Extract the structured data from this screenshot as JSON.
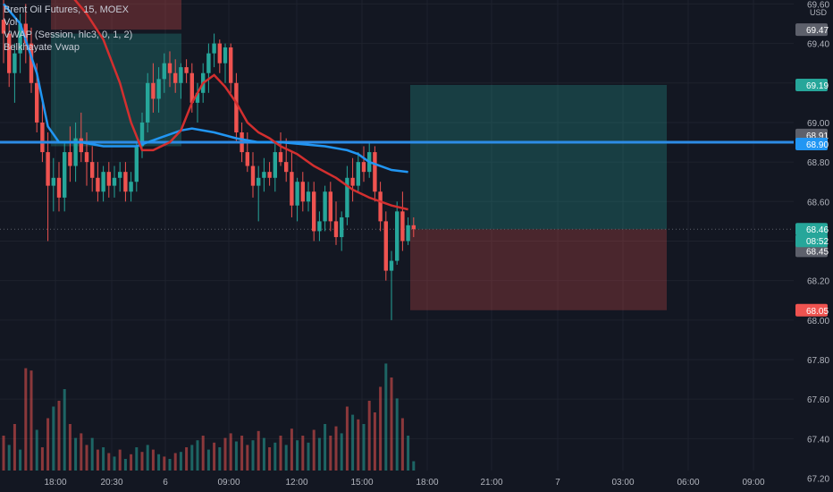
{
  "legend": {
    "symbol": "Brent Oil Futures, 15, MOEX",
    "vol": "Vol",
    "vwap": "VWAP (Session, hlc3, 0, 1, 2)",
    "belkhayate": "Belkhayate Vwap"
  },
  "chart_data": {
    "type": "candlestick",
    "title": "Brent Oil Futures, 15, MOEX",
    "currency": "USD",
    "ylim": [
      67.13,
      69.62
    ],
    "y_ticks": [
      "69.60",
      "69.40",
      "69.00",
      "68.80",
      "68.60",
      "68.20",
      "68.00",
      "67.80",
      "67.60",
      "67.40",
      "67.20"
    ],
    "x_ticks": [
      "18:00",
      "20:30",
      "6",
      "09:00",
      "12:00",
      "15:00",
      "18:00",
      "21:00",
      "7",
      "03:00",
      "06:00",
      "09:00"
    ],
    "candles": [
      {
        "o": 69.52,
        "h": 69.62,
        "l": 69.3,
        "c": 69.45
      },
      {
        "o": 69.45,
        "h": 69.5,
        "l": 69.18,
        "c": 69.25
      },
      {
        "o": 69.25,
        "h": 69.4,
        "l": 69.1,
        "c": 69.35
      },
      {
        "o": 69.35,
        "h": 69.55,
        "l": 69.25,
        "c": 69.5
      },
      {
        "o": 69.5,
        "h": 69.6,
        "l": 69.3,
        "c": 69.4
      },
      {
        "o": 69.4,
        "h": 69.48,
        "l": 69.15,
        "c": 69.2
      },
      {
        "o": 69.2,
        "h": 69.3,
        "l": 68.95,
        "c": 69.0
      },
      {
        "o": 69.0,
        "h": 69.1,
        "l": 68.8,
        "c": 68.85
      },
      {
        "o": 68.85,
        "h": 68.95,
        "l": 68.4,
        "c": 68.68
      },
      {
        "o": 68.68,
        "h": 68.82,
        "l": 68.55,
        "c": 68.72
      },
      {
        "o": 68.72,
        "h": 68.8,
        "l": 68.55,
        "c": 68.62
      },
      {
        "o": 68.62,
        "h": 68.9,
        "l": 68.55,
        "c": 68.85
      },
      {
        "o": 68.85,
        "h": 68.98,
        "l": 68.7,
        "c": 68.78
      },
      {
        "o": 68.78,
        "h": 69.0,
        "l": 68.7,
        "c": 68.92
      },
      {
        "o": 68.92,
        "h": 69.05,
        "l": 68.8,
        "c": 68.85
      },
      {
        "o": 68.85,
        "h": 68.95,
        "l": 68.68,
        "c": 68.8
      },
      {
        "o": 68.8,
        "h": 68.88,
        "l": 68.65,
        "c": 68.72
      },
      {
        "o": 68.72,
        "h": 68.8,
        "l": 68.6,
        "c": 68.65
      },
      {
        "o": 68.65,
        "h": 68.78,
        "l": 68.6,
        "c": 68.75
      },
      {
        "o": 68.75,
        "h": 68.8,
        "l": 68.62,
        "c": 68.68
      },
      {
        "o": 68.68,
        "h": 68.78,
        "l": 68.62,
        "c": 68.72
      },
      {
        "o": 68.72,
        "h": 68.8,
        "l": 68.65,
        "c": 68.75
      },
      {
        "o": 68.75,
        "h": 68.8,
        "l": 68.6,
        "c": 68.65
      },
      {
        "o": 68.65,
        "h": 68.75,
        "l": 68.6,
        "c": 68.7
      },
      {
        "o": 68.7,
        "h": 68.9,
        "l": 68.65,
        "c": 68.88
      },
      {
        "o": 68.88,
        "h": 69.05,
        "l": 68.82,
        "c": 69.0
      },
      {
        "o": 69.0,
        "h": 69.25,
        "l": 68.95,
        "c": 69.2
      },
      {
        "o": 69.2,
        "h": 69.3,
        "l": 69.05,
        "c": 69.12
      },
      {
        "o": 69.12,
        "h": 69.28,
        "l": 69.05,
        "c": 69.22
      },
      {
        "o": 69.22,
        "h": 69.35,
        "l": 69.15,
        "c": 69.3
      },
      {
        "o": 69.3,
        "h": 69.36,
        "l": 69.18,
        "c": 69.25
      },
      {
        "o": 69.25,
        "h": 69.32,
        "l": 69.15,
        "c": 69.2
      },
      {
        "o": 69.2,
        "h": 69.3,
        "l": 69.12,
        "c": 69.28
      },
      {
        "o": 69.28,
        "h": 69.32,
        "l": 69.2,
        "c": 69.25
      },
      {
        "o": 69.25,
        "h": 69.3,
        "l": 69.05,
        "c": 69.1
      },
      {
        "o": 69.1,
        "h": 69.2,
        "l": 69.0,
        "c": 69.15
      },
      {
        "o": 69.15,
        "h": 69.3,
        "l": 69.1,
        "c": 69.25
      },
      {
        "o": 69.25,
        "h": 69.4,
        "l": 69.15,
        "c": 69.35
      },
      {
        "o": 69.35,
        "h": 69.45,
        "l": 69.28,
        "c": 69.4
      },
      {
        "o": 69.4,
        "h": 69.42,
        "l": 69.25,
        "c": 69.3
      },
      {
        "o": 69.3,
        "h": 69.4,
        "l": 69.2,
        "c": 69.38
      },
      {
        "o": 69.38,
        "h": 69.4,
        "l": 69.15,
        "c": 69.2
      },
      {
        "o": 69.2,
        "h": 69.25,
        "l": 68.9,
        "c": 68.95
      },
      {
        "o": 68.95,
        "h": 69.0,
        "l": 68.8,
        "c": 68.85
      },
      {
        "o": 68.85,
        "h": 68.95,
        "l": 68.75,
        "c": 68.78
      },
      {
        "o": 68.78,
        "h": 68.85,
        "l": 68.62,
        "c": 68.68
      },
      {
        "o": 68.68,
        "h": 68.78,
        "l": 68.5,
        "c": 68.72
      },
      {
        "o": 68.72,
        "h": 68.82,
        "l": 68.65,
        "c": 68.75
      },
      {
        "o": 68.75,
        "h": 68.8,
        "l": 68.68,
        "c": 68.72
      },
      {
        "o": 68.72,
        "h": 68.9,
        "l": 68.65,
        "c": 68.85
      },
      {
        "o": 68.85,
        "h": 68.95,
        "l": 68.78,
        "c": 68.8
      },
      {
        "o": 68.8,
        "h": 68.92,
        "l": 68.7,
        "c": 68.75
      },
      {
        "o": 68.75,
        "h": 68.85,
        "l": 68.52,
        "c": 68.58
      },
      {
        "o": 68.58,
        "h": 68.72,
        "l": 68.5,
        "c": 68.7
      },
      {
        "o": 68.7,
        "h": 68.75,
        "l": 68.55,
        "c": 68.6
      },
      {
        "o": 68.6,
        "h": 68.7,
        "l": 68.55,
        "c": 68.65
      },
      {
        "o": 68.65,
        "h": 68.7,
        "l": 68.4,
        "c": 68.45
      },
      {
        "o": 68.45,
        "h": 68.55,
        "l": 68.4,
        "c": 68.5
      },
      {
        "o": 68.5,
        "h": 68.68,
        "l": 68.45,
        "c": 68.65
      },
      {
        "o": 68.65,
        "h": 68.7,
        "l": 68.45,
        "c": 68.5
      },
      {
        "o": 68.5,
        "h": 68.6,
        "l": 68.38,
        "c": 68.42
      },
      {
        "o": 68.42,
        "h": 68.55,
        "l": 68.35,
        "c": 68.52
      },
      {
        "o": 68.52,
        "h": 68.78,
        "l": 68.48,
        "c": 68.72
      },
      {
        "o": 68.72,
        "h": 68.82,
        "l": 68.6,
        "c": 68.68
      },
      {
        "o": 68.68,
        "h": 68.85,
        "l": 68.65,
        "c": 68.8
      },
      {
        "o": 68.8,
        "h": 68.88,
        "l": 68.7,
        "c": 68.75
      },
      {
        "o": 68.75,
        "h": 68.9,
        "l": 68.72,
        "c": 68.85
      },
      {
        "o": 68.85,
        "h": 68.88,
        "l": 68.6,
        "c": 68.65
      },
      {
        "o": 68.65,
        "h": 68.7,
        "l": 68.45,
        "c": 68.5
      },
      {
        "o": 68.5,
        "h": 68.55,
        "l": 68.2,
        "c": 68.25
      },
      {
        "o": 68.25,
        "h": 68.35,
        "l": 68.0,
        "c": 68.3
      },
      {
        "o": 68.3,
        "h": 68.6,
        "l": 68.28,
        "c": 68.55
      },
      {
        "o": 68.55,
        "h": 68.65,
        "l": 68.35,
        "c": 68.4
      },
      {
        "o": 68.4,
        "h": 68.52,
        "l": 68.38,
        "c": 68.48
      },
      {
        "o": 68.48,
        "h": 68.52,
        "l": 68.42,
        "c": 68.46
      }
    ],
    "volume": [
      {
        "v": 0.3,
        "up": false
      },
      {
        "v": 0.22,
        "up": true
      },
      {
        "v": 0.4,
        "up": false
      },
      {
        "v": 0.18,
        "up": true
      },
      {
        "v": 0.88,
        "up": false
      },
      {
        "v": 0.86,
        "up": false
      },
      {
        "v": 0.35,
        "up": true
      },
      {
        "v": 0.2,
        "up": false
      },
      {
        "v": 0.45,
        "up": false
      },
      {
        "v": 0.55,
        "up": true
      },
      {
        "v": 0.6,
        "up": false
      },
      {
        "v": 0.7,
        "up": true
      },
      {
        "v": 0.4,
        "up": false
      },
      {
        "v": 0.28,
        "up": true
      },
      {
        "v": 0.32,
        "up": false
      },
      {
        "v": 0.22,
        "up": false
      },
      {
        "v": 0.28,
        "up": true
      },
      {
        "v": 0.18,
        "up": false
      },
      {
        "v": 0.2,
        "up": true
      },
      {
        "v": 0.15,
        "up": false
      },
      {
        "v": 0.12,
        "up": true
      },
      {
        "v": 0.18,
        "up": false
      },
      {
        "v": 0.1,
        "up": true
      },
      {
        "v": 0.14,
        "up": false
      },
      {
        "v": 0.2,
        "up": true
      },
      {
        "v": 0.16,
        "up": false
      },
      {
        "v": 0.22,
        "up": true
      },
      {
        "v": 0.18,
        "up": false
      },
      {
        "v": 0.14,
        "up": true
      },
      {
        "v": 0.12,
        "up": false
      },
      {
        "v": 0.1,
        "up": true
      },
      {
        "v": 0.15,
        "up": false
      },
      {
        "v": 0.16,
        "up": true
      },
      {
        "v": 0.2,
        "up": false
      },
      {
        "v": 0.22,
        "up": true
      },
      {
        "v": 0.26,
        "up": true
      },
      {
        "v": 0.3,
        "up": false
      },
      {
        "v": 0.18,
        "up": true
      },
      {
        "v": 0.24,
        "up": false
      },
      {
        "v": 0.2,
        "up": true
      },
      {
        "v": 0.28,
        "up": false
      },
      {
        "v": 0.32,
        "up": false
      },
      {
        "v": 0.25,
        "up": true
      },
      {
        "v": 0.3,
        "up": false
      },
      {
        "v": 0.22,
        "up": false
      },
      {
        "v": 0.26,
        "up": true
      },
      {
        "v": 0.34,
        "up": false
      },
      {
        "v": 0.28,
        "up": true
      },
      {
        "v": 0.2,
        "up": false
      },
      {
        "v": 0.24,
        "up": true
      },
      {
        "v": 0.3,
        "up": false
      },
      {
        "v": 0.22,
        "up": true
      },
      {
        "v": 0.36,
        "up": false
      },
      {
        "v": 0.26,
        "up": true
      },
      {
        "v": 0.3,
        "up": false
      },
      {
        "v": 0.24,
        "up": true
      },
      {
        "v": 0.35,
        "up": false
      },
      {
        "v": 0.28,
        "up": true
      },
      {
        "v": 0.4,
        "up": true
      },
      {
        "v": 0.3,
        "up": false
      },
      {
        "v": 0.38,
        "up": false
      },
      {
        "v": 0.32,
        "up": true
      },
      {
        "v": 0.55,
        "up": false
      },
      {
        "v": 0.48,
        "up": true
      },
      {
        "v": 0.44,
        "up": false
      },
      {
        "v": 0.4,
        "up": true
      },
      {
        "v": 0.6,
        "up": false
      },
      {
        "v": 0.5,
        "up": false
      },
      {
        "v": 0.72,
        "up": false
      },
      {
        "v": 0.92,
        "up": true
      },
      {
        "v": 0.8,
        "up": false
      },
      {
        "v": 0.62,
        "up": true
      },
      {
        "v": 0.45,
        "up": false
      },
      {
        "v": 0.3,
        "up": true
      },
      {
        "v": 0.08,
        "up": true
      }
    ],
    "vwap_line": [
      [
        69.6,
        0
      ],
      [
        69.5,
        3
      ],
      [
        69.25,
        6
      ],
      [
        68.98,
        8
      ],
      [
        68.9,
        10
      ],
      [
        68.9,
        14
      ],
      [
        68.88,
        18
      ],
      [
        68.88,
        24
      ],
      [
        68.92,
        28
      ],
      [
        68.96,
        32
      ],
      [
        68.97,
        34
      ],
      [
        68.95,
        38
      ],
      [
        68.92,
        42
      ],
      [
        68.9,
        46
      ],
      [
        68.9,
        50
      ],
      [
        68.89,
        54
      ],
      [
        68.88,
        58
      ],
      [
        68.86,
        62
      ],
      [
        68.84,
        64
      ],
      [
        68.8,
        66
      ],
      [
        68.76,
        70
      ],
      [
        68.75,
        73
      ]
    ],
    "belkhayate_line": [
      [
        69.65,
        12
      ],
      [
        69.55,
        15
      ],
      [
        69.42,
        18
      ],
      [
        69.2,
        21
      ],
      [
        69.0,
        23
      ],
      [
        68.86,
        25
      ],
      [
        68.86,
        27
      ],
      [
        68.9,
        30
      ],
      [
        68.96,
        32
      ],
      [
        69.1,
        34
      ],
      [
        69.2,
        36
      ],
      [
        69.24,
        38
      ],
      [
        69.18,
        40
      ],
      [
        69.1,
        42
      ],
      [
        69.0,
        44
      ],
      [
        68.95,
        46
      ],
      [
        68.92,
        48
      ],
      [
        68.88,
        50
      ],
      [
        68.84,
        53
      ],
      [
        68.78,
        56
      ],
      [
        68.72,
        60
      ],
      [
        68.66,
        63
      ],
      [
        68.62,
        66
      ],
      [
        68.58,
        70
      ],
      [
        68.56,
        73
      ]
    ],
    "hlines": [
      {
        "price": 68.9,
        "label": "68.90",
        "color": "#2d8ce6"
      }
    ],
    "price_labels": [
      {
        "price": 69.47,
        "text": "69.47",
        "style": "gray"
      },
      {
        "price": 69.19,
        "text": "69.19",
        "style": "green"
      },
      {
        "price": 68.91,
        "text": "68.91",
        "style": "gray"
      },
      {
        "price": 68.9,
        "text": "68.90",
        "style": "blue"
      },
      {
        "price": 68.46,
        "text": "68.46",
        "style": "teal"
      },
      {
        "price": 68.45,
        "text": "68.45",
        "style": "gray"
      },
      {
        "price": 68.05,
        "text": "68.05",
        "style": "red"
      }
    ],
    "countdown": "08:52",
    "positions": [
      {
        "entry": 68.46,
        "target": 69.19,
        "stop": 68.05
      }
    ],
    "colors": {
      "bg": "#131722",
      "up": "#26a69a",
      "down": "#ef5350",
      "vwap": "#2196f3",
      "belkhayate": "#d32f2f",
      "hline": "#2d8ce6",
      "axis_text": "#b2b5be",
      "grid": "#1e222d"
    }
  }
}
